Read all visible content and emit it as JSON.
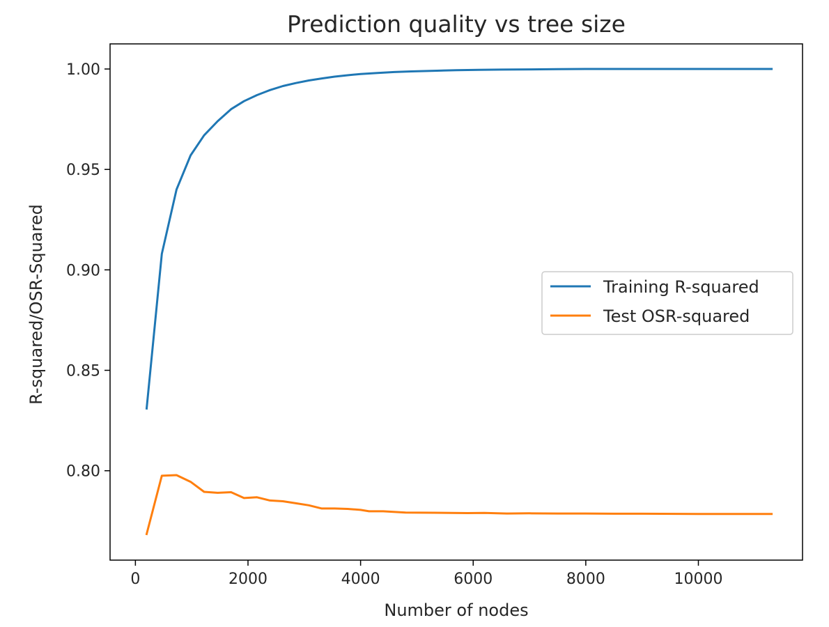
{
  "chart_data": {
    "type": "line",
    "title": "Prediction quality vs tree size",
    "xlabel": "Number of nodes",
    "ylabel": "R-squared/OSR-Squared",
    "xlim": [
      -450,
      11850
    ],
    "ylim": [
      0.7555,
      1.0125
    ],
    "xticks": [
      0,
      2000,
      4000,
      6000,
      8000,
      10000
    ],
    "xtick_labels": [
      "0",
      "2000",
      "4000",
      "6000",
      "8000",
      "10000"
    ],
    "yticks": [
      0.8,
      0.85,
      0.9,
      0.95,
      1.0
    ],
    "ytick_labels": [
      "0.80",
      "0.85",
      "0.90",
      "0.95",
      "1.00"
    ],
    "grid": false,
    "legend_position": "center-right",
    "series": [
      {
        "name": "Training R-squared",
        "color": "#1f77b4",
        "x": [
          200,
          470,
          730,
          980,
          1220,
          1460,
          1700,
          1930,
          2160,
          2390,
          2620,
          2850,
          3080,
          3310,
          3540,
          3770,
          4000,
          4300,
          4600,
          4900,
          5300,
          5700,
          6100,
          6500,
          7000,
          7500,
          8000,
          8500,
          9000,
          9500,
          10000,
          10500,
          11000,
          11300
        ],
        "y": [
          0.831,
          0.908,
          0.94,
          0.957,
          0.967,
          0.974,
          0.98,
          0.984,
          0.987,
          0.9895,
          0.9915,
          0.993,
          0.9943,
          0.9953,
          0.9962,
          0.9969,
          0.9975,
          0.998,
          0.9985,
          0.9988,
          0.9991,
          0.9994,
          0.9996,
          0.9997,
          0.9998,
          0.9999,
          1.0,
          1.0,
          1.0,
          1.0,
          1.0,
          1.0,
          1.0,
          1.0
        ]
      },
      {
        "name": "Test OSR-squared",
        "color": "#ff7f0e",
        "x": [
          200,
          470,
          730,
          980,
          1220,
          1460,
          1700,
          1930,
          2160,
          2390,
          2620,
          2850,
          3080,
          3310,
          3540,
          3770,
          4000,
          4150,
          4400,
          4800,
          5300,
          5900,
          6200,
          6600,
          7000,
          7500,
          8000,
          8500,
          9000,
          10000,
          11300
        ],
        "y": [
          0.7685,
          0.7975,
          0.7978,
          0.7945,
          0.7895,
          0.789,
          0.7893,
          0.7864,
          0.7868,
          0.7852,
          0.7848,
          0.7838,
          0.7828,
          0.7812,
          0.7812,
          0.781,
          0.7805,
          0.7798,
          0.7798,
          0.7792,
          0.7791,
          0.7789,
          0.779,
          0.7787,
          0.7788,
          0.7787,
          0.7787,
          0.7786,
          0.7786,
          0.7785,
          0.7785
        ]
      }
    ]
  }
}
